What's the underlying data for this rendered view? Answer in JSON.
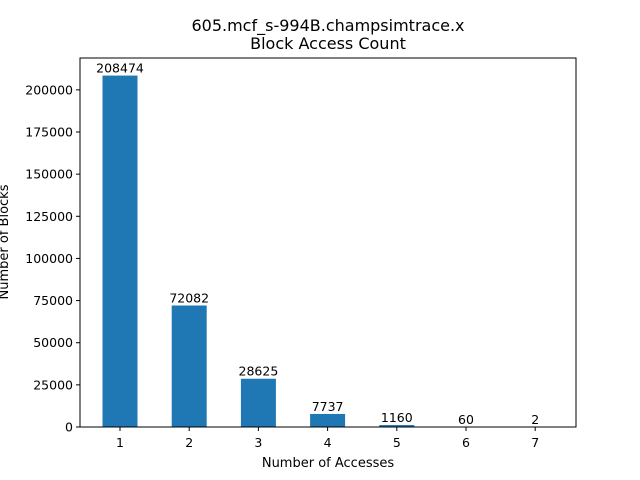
{
  "chart_data": {
    "type": "bar",
    "title": "605.mcf_s-994B.champsimtrace.x",
    "subtitle": "Block Access Count",
    "xlabel": "Number of Accesses",
    "ylabel": "Number of Blocks",
    "categories": [
      "1",
      "2",
      "3",
      "4",
      "5",
      "6",
      "7"
    ],
    "values": [
      208474,
      72082,
      28625,
      7737,
      1160,
      60,
      2
    ],
    "data_labels": [
      "208474",
      "72082",
      "28625",
      "7737",
      "1160",
      "60",
      "2"
    ],
    "ylim": [
      0,
      218898
    ],
    "yticks": [
      0,
      25000,
      50000,
      75000,
      100000,
      125000,
      150000,
      175000,
      200000
    ],
    "ytick_labels": [
      "0",
      "25000",
      "50000",
      "75000",
      "100000",
      "125000",
      "150000",
      "175000",
      "200000"
    ],
    "bar_color": "#1f77b4",
    "grid": false,
    "legend": "none"
  }
}
